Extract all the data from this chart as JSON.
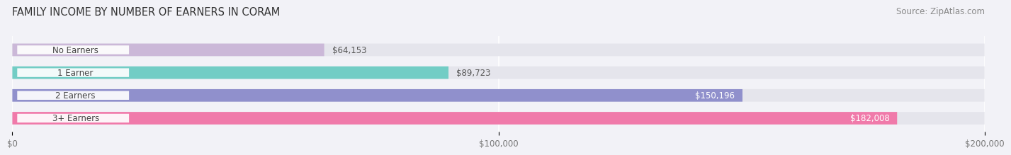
{
  "title": "FAMILY INCOME BY NUMBER OF EARNERS IN CORAM",
  "source": "Source: ZipAtlas.com",
  "categories": [
    "No Earners",
    "1 Earner",
    "2 Earners",
    "3+ Earners"
  ],
  "values": [
    64153,
    89723,
    150196,
    182008
  ],
  "bar_colors": [
    "#cbb8d8",
    "#72cdc5",
    "#9090cc",
    "#f07aaa"
  ],
  "value_labels": [
    "$64,153",
    "$89,723",
    "$150,196",
    "$182,008"
  ],
  "xlim": [
    0,
    200000
  ],
  "xticks": [
    0,
    100000,
    200000
  ],
  "xtick_labels": [
    "$0",
    "$100,000",
    "$200,000"
  ],
  "background_color": "#f2f2f7",
  "bar_background_color": "#e5e5ec",
  "title_fontsize": 10.5,
  "source_fontsize": 8.5,
  "label_fontsize": 8.5,
  "value_fontsize": 8.5,
  "bar_height": 0.55,
  "value_inside_threshold": 0.6
}
